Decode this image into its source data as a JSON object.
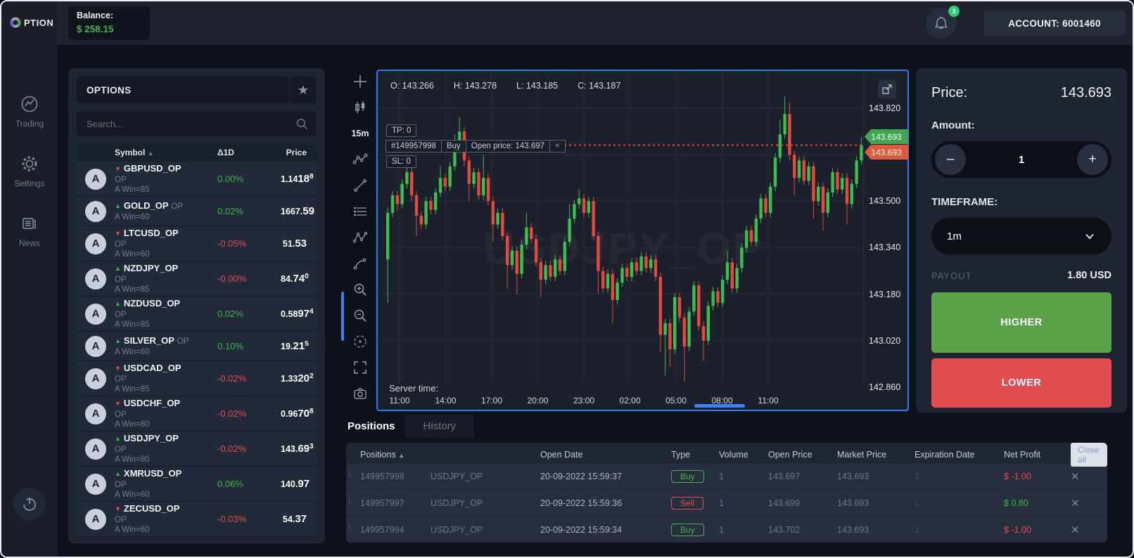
{
  "colors": {
    "accent_blue": "#3b82f6",
    "green": "#43b34a",
    "red": "#e04f4f",
    "candle_green": "#3dbd4e",
    "candle_red": "#e14b3d",
    "badge_green": "#3fa84f",
    "badge_red": "#dd5b3c",
    "higher_bg": "#5ba24b",
    "lower_bg": "#e14d51",
    "balance_green": "#43b34a"
  },
  "topbar": {
    "logo_text": "PTION",
    "balance_label": "Balance:",
    "balance_value": "$ 258.15",
    "notifications_count": "3",
    "account_label": "ACCOUNT: 6001460"
  },
  "sidebar": {
    "items": [
      {
        "icon": "trading-icon",
        "label": "Trading"
      },
      {
        "icon": "settings-icon",
        "label": "Settings"
      },
      {
        "icon": "news-icon",
        "label": "News"
      }
    ]
  },
  "watchlist": {
    "title": "OPTIONS",
    "search_placeholder": "Search...",
    "columns": {
      "symbol": "Symbol",
      "change": "Δ1D",
      "price": "Price"
    },
    "rows": [
      {
        "symbol": "GBPUSD_OP",
        "dir": "down",
        "suffix": "",
        "line2": "OP",
        "win": "A Win=85",
        "change": "0.00%",
        "change_color": "green",
        "p1": "1.14",
        "p2": "18",
        "p3": "8"
      },
      {
        "symbol": "GOLD_OP",
        "dir": "up",
        "suffix": "OP",
        "line2": "",
        "win": "A Win=60",
        "change": "0.02%",
        "change_color": "green",
        "p1": "1667.",
        "p2": "59",
        "p3": ""
      },
      {
        "symbol": "LTCUSD_OP",
        "dir": "down",
        "suffix": "",
        "line2": "OP",
        "win": "A Win=60",
        "change": "-0.05%",
        "change_color": "red",
        "p1": "51.",
        "p2": "53",
        "p3": ""
      },
      {
        "symbol": "NZDJPY_OP",
        "dir": "up",
        "suffix": "",
        "line2": "OP",
        "win": "A Win=85",
        "change": "-0.00%",
        "change_color": "red",
        "p1": "84.",
        "p2": "74",
        "p3": "0"
      },
      {
        "symbol": "NZDUSD_OP",
        "dir": "up",
        "suffix": "",
        "line2": "OP",
        "win": "A Win=85",
        "change": "0.02%",
        "change_color": "green",
        "p1": "0.58",
        "p2": "97",
        "p3": "4"
      },
      {
        "symbol": "SILVER_OP",
        "dir": "up",
        "suffix": "OP",
        "line2": "",
        "win": "A Win=60",
        "change": "0.10%",
        "change_color": "green",
        "p1": "19.",
        "p2": "21",
        "p3": "5"
      },
      {
        "symbol": "USDCAD_OP",
        "dir": "down",
        "suffix": "",
        "line2": "OP",
        "win": "A Win=85",
        "change": "-0.02%",
        "change_color": "red",
        "p1": "1.33",
        "p2": "20",
        "p3": "2"
      },
      {
        "symbol": "USDCHF_OP",
        "dir": "down",
        "suffix": "",
        "line2": "OP",
        "win": "A Win=80",
        "change": "-0.02%",
        "change_color": "red",
        "p1": "0.96",
        "p2": "70",
        "p3": "8"
      },
      {
        "symbol": "USDJPY_OP",
        "dir": "up",
        "suffix": "",
        "line2": "OP",
        "win": "A Win=80",
        "change": "-0.02%",
        "change_color": "red",
        "p1": "143.",
        "p2": "69",
        "p3": "3"
      },
      {
        "symbol": "XMRUSD_OP",
        "dir": "up",
        "suffix": "",
        "line2": "OP",
        "win": "A Win=60",
        "change": "0.06%",
        "change_color": "green",
        "p1": "140.",
        "p2": "97",
        "p3": ""
      },
      {
        "symbol": "ZECUSD_OP",
        "dir": "down",
        "suffix": "",
        "line2": "OP",
        "win": "A Win=60",
        "change": "-0.03%",
        "change_color": "red",
        "p1": "54.",
        "p2": "37",
        "p3": ""
      }
    ]
  },
  "chart_toolbar": {
    "items": [
      "crosshair",
      "candles",
      "timeframe",
      "indicator",
      "trend-line",
      "horizontal-lines",
      "pattern",
      "curve",
      "zoom-in",
      "zoom-out",
      "target",
      "fullscreen",
      "screenshot"
    ],
    "timeframe_label": "15m"
  },
  "chart": {
    "ohlc": {
      "o": "O: 143.266",
      "h": "H: 143.278",
      "l": "L: 143.185",
      "c": "C: 143.187"
    },
    "overlay": {
      "tp": "TP: 0",
      "sl": "SL: 0",
      "position_id": "#149957998",
      "position_type": "Buy",
      "open_price": "Open price: 143.697",
      "close_label": "×"
    },
    "badges": {
      "ask": "143.693",
      "bid": "143.693"
    },
    "price_axis_labels": [
      {
        "text": "143.820",
        "value": 143.82
      },
      {
        "text": "143.500",
        "value": 143.5
      },
      {
        "text": "143.340",
        "value": 143.34
      },
      {
        "text": "143.180",
        "value": 143.18
      },
      {
        "text": "143.020",
        "value": 143.02
      },
      {
        "text": "142.860",
        "value": 142.86
      }
    ],
    "server_time_label": "Server time:",
    "time_labels": [
      "11:00",
      "14:00",
      "17:00",
      "20:00",
      "23:00",
      "02:00",
      "05:00",
      "08:00",
      "11:00"
    ],
    "chart_data": {
      "type": "candlestick",
      "symbol_watermark": "USDJPY_OP",
      "price_line": 143.693,
      "axis": {
        "top_price": 143.82,
        "bottom_price": 142.86
      },
      "grid_prices": [
        143.82,
        143.66,
        143.5,
        143.34,
        143.18,
        143.02,
        142.86
      ],
      "candles": [
        [
          143.3,
          143.48,
          143.15,
          143.46
        ],
        [
          143.46,
          143.535,
          143.445,
          143.52
        ],
        [
          143.52,
          143.535,
          143.465,
          143.49
        ],
        [
          143.49,
          143.575,
          143.475,
          143.56
        ],
        [
          143.56,
          143.63,
          143.545,
          143.6
        ],
        [
          143.6,
          143.615,
          143.5,
          143.52
        ],
        [
          143.52,
          143.535,
          143.38,
          143.45
        ],
        [
          143.45,
          143.465,
          143.405,
          143.42
        ],
        [
          143.42,
          143.515,
          143.405,
          143.5
        ],
        [
          143.5,
          143.515,
          143.455,
          143.47
        ],
        [
          143.47,
          143.545,
          143.455,
          143.53
        ],
        [
          143.53,
          143.62,
          143.515,
          143.58
        ],
        [
          143.58,
          143.595,
          143.535,
          143.55
        ],
        [
          143.55,
          143.635,
          143.535,
          143.62
        ],
        [
          143.62,
          143.73,
          143.605,
          143.7
        ],
        [
          143.7,
          143.79,
          143.685,
          143.74
        ],
        [
          143.74,
          143.755,
          143.62,
          143.64
        ],
        [
          143.64,
          143.655,
          143.5,
          143.56
        ],
        [
          143.56,
          143.615,
          143.545,
          143.6
        ],
        [
          143.6,
          143.615,
          143.505,
          143.52
        ],
        [
          143.52,
          143.66,
          143.505,
          143.58
        ],
        [
          143.58,
          143.595,
          143.485,
          143.5
        ],
        [
          143.5,
          143.515,
          143.36,
          143.42
        ],
        [
          143.42,
          143.475,
          143.405,
          143.46
        ],
        [
          143.46,
          143.475,
          143.365,
          143.38
        ],
        [
          143.38,
          143.395,
          143.2,
          143.28
        ],
        [
          143.28,
          143.345,
          143.265,
          143.33
        ],
        [
          143.33,
          143.345,
          143.18,
          143.25
        ],
        [
          143.25,
          143.365,
          143.235,
          143.35
        ],
        [
          143.35,
          143.46,
          143.335,
          143.41
        ],
        [
          143.41,
          143.425,
          143.355,
          143.37
        ],
        [
          143.37,
          143.385,
          143.275,
          143.29
        ],
        [
          143.29,
          143.305,
          143.17,
          143.23
        ],
        [
          143.23,
          143.295,
          143.215,
          143.28
        ],
        [
          143.28,
          143.295,
          143.225,
          143.24
        ],
        [
          143.24,
          143.315,
          143.225,
          143.3
        ],
        [
          143.3,
          143.315,
          143.245,
          143.26
        ],
        [
          143.26,
          143.375,
          143.245,
          143.36
        ],
        [
          143.36,
          143.49,
          143.345,
          143.44
        ],
        [
          143.44,
          143.505,
          143.425,
          143.49
        ],
        [
          143.49,
          143.54,
          143.475,
          143.51
        ],
        [
          143.51,
          143.525,
          143.445,
          143.46
        ],
        [
          143.46,
          143.515,
          143.445,
          143.5
        ],
        [
          143.5,
          143.515,
          143.365,
          143.38
        ],
        [
          143.38,
          143.395,
          143.18,
          143.26
        ],
        [
          143.26,
          143.275,
          143.185,
          143.2
        ],
        [
          143.2,
          143.265,
          143.185,
          143.25
        ],
        [
          143.25,
          143.265,
          143.08,
          143.16
        ],
        [
          143.16,
          143.235,
          143.145,
          143.22
        ],
        [
          143.22,
          143.285,
          143.205,
          143.27
        ],
        [
          143.27,
          143.285,
          143.225,
          143.24
        ],
        [
          143.24,
          143.305,
          143.225,
          143.29
        ],
        [
          143.29,
          143.305,
          143.245,
          143.26
        ],
        [
          143.26,
          143.325,
          143.245,
          143.31
        ],
        [
          143.31,
          143.325,
          143.255,
          143.27
        ],
        [
          143.27,
          143.315,
          143.255,
          143.3
        ],
        [
          143.3,
          143.315,
          143.225,
          143.24
        ],
        [
          143.24,
          143.255,
          142.98,
          143.04
        ],
        [
          143.04,
          143.095,
          142.9,
          143.08
        ],
        [
          143.08,
          143.095,
          142.93,
          142.99
        ],
        [
          142.99,
          143.185,
          142.975,
          143.17
        ],
        [
          143.17,
          143.185,
          143.085,
          143.1
        ],
        [
          143.1,
          143.115,
          142.88,
          143.0
        ],
        [
          143.0,
          143.135,
          142.985,
          143.12
        ],
        [
          143.12,
          143.225,
          143.105,
          143.21
        ],
        [
          143.21,
          143.225,
          143.055,
          143.07
        ],
        [
          143.07,
          143.085,
          142.95,
          143.02
        ],
        [
          143.02,
          143.155,
          143.005,
          143.14
        ],
        [
          143.14,
          143.205,
          143.125,
          143.19
        ],
        [
          143.19,
          143.205,
          143.135,
          143.15
        ],
        [
          143.15,
          143.245,
          143.135,
          143.23
        ],
        [
          143.23,
          143.33,
          143.215,
          143.29
        ],
        [
          143.29,
          143.305,
          143.185,
          143.2
        ],
        [
          143.2,
          143.285,
          143.185,
          143.27
        ],
        [
          143.27,
          143.355,
          143.255,
          143.34
        ],
        [
          143.34,
          143.415,
          143.325,
          143.4
        ],
        [
          143.4,
          143.415,
          143.345,
          143.36
        ],
        [
          143.36,
          143.455,
          143.345,
          143.44
        ],
        [
          143.44,
          143.525,
          143.425,
          143.51
        ],
        [
          143.51,
          143.525,
          143.445,
          143.46
        ],
        [
          143.46,
          143.565,
          143.445,
          143.55
        ],
        [
          143.55,
          143.665,
          143.535,
          143.65
        ],
        [
          143.65,
          143.78,
          143.635,
          143.73
        ],
        [
          143.73,
          143.86,
          143.715,
          143.8
        ],
        [
          143.8,
          143.84,
          143.64,
          143.66
        ],
        [
          143.66,
          143.675,
          143.52,
          143.58
        ],
        [
          143.58,
          143.655,
          143.565,
          143.64
        ],
        [
          143.64,
          143.655,
          143.555,
          143.57
        ],
        [
          143.57,
          143.635,
          143.555,
          143.62
        ],
        [
          143.62,
          143.635,
          143.44,
          143.5
        ],
        [
          143.5,
          143.565,
          143.485,
          143.55
        ],
        [
          143.55,
          143.565,
          143.4,
          143.46
        ],
        [
          143.46,
          143.545,
          143.445,
          143.53
        ],
        [
          143.53,
          143.615,
          143.515,
          143.6
        ],
        [
          143.6,
          143.615,
          143.525,
          143.54
        ],
        [
          143.54,
          143.595,
          143.525,
          143.58
        ],
        [
          143.58,
          143.595,
          143.42,
          143.49
        ],
        [
          143.49,
          143.575,
          143.475,
          143.56
        ],
        [
          143.56,
          143.655,
          143.545,
          143.64
        ],
        [
          143.64,
          143.72,
          143.625,
          143.693
        ]
      ]
    }
  },
  "trade_panel": {
    "price_label": "Price:",
    "price_value": "143.693",
    "amount_label": "Amount:",
    "amount_value": "1",
    "minus_label": "–",
    "plus_label": "+",
    "timeframe_label": "TIMEFRAME:",
    "timeframe_value": "1m",
    "payout_label": "PAYOUT",
    "payout_value": "1.80 USD",
    "higher_label": "HIGHER",
    "lower_label": "LOWER"
  },
  "positions": {
    "tabs": [
      "Positions",
      "History"
    ],
    "columns": [
      "Positions",
      "Open Date",
      "Type",
      "Volume",
      "Open Price",
      "Market Price",
      "Expiration Date",
      "Net Profit"
    ],
    "close_all_label": "Close all",
    "rows": [
      {
        "id": "149957998",
        "symbol": "USDJPY_OP",
        "open_date": "20-09-2022 15:59:37",
        "type": "Buy",
        "volume": "1",
        "open_price": "143.697",
        "market_price": "143.693",
        "expiration": "1",
        "profit": "$ -1.00",
        "profit_color": "red"
      },
      {
        "id": "149957997",
        "symbol": "USDJPY_OP",
        "open_date": "20-09-2022 15:59:36",
        "type": "Sell",
        "volume": "1",
        "open_price": "143.699",
        "market_price": "143.693",
        "expiration": "1",
        "profit": "$ 0.80",
        "profit_color": "green"
      },
      {
        "id": "149957994",
        "symbol": "USDJPY_OP",
        "open_date": "20-09-2022 15:59:34",
        "type": "Buy",
        "volume": "1",
        "open_price": "143.702",
        "market_price": "143.693",
        "expiration": "1",
        "profit": "$ -1.00",
        "profit_color": "red"
      }
    ]
  }
}
